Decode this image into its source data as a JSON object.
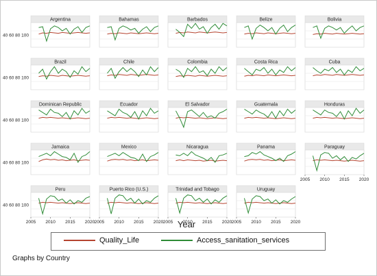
{
  "chart_data": {
    "type": "line",
    "xlabel": "Year",
    "ylabel": "",
    "xlim": [
      2005,
      2020
    ],
    "ylim": [
      40,
      100
    ],
    "x_ticks": [
      2005,
      2010,
      2015,
      2020
    ],
    "y_ticks": [
      40,
      60,
      80,
      100
    ],
    "years": [
      2007,
      2008,
      2009,
      2010,
      2011,
      2012,
      2013,
      2014,
      2015,
      2016,
      2017,
      2018,
      2019,
      2020
    ],
    "legend": {
      "position": "bottom"
    },
    "grid": true,
    "note": "Graphs by Country",
    "series_colors": {
      "Quality_Life": "#b5432f",
      "Access_sanitation_services": "#2e8b36"
    },
    "panels": [
      {
        "name": "Argentina",
        "series": [
          {
            "name": "Quality_Life",
            "values": [
              72,
              75,
              74,
              76,
              75,
              74,
              76,
              75,
              74,
              75,
              76,
              75,
              74,
              75
            ]
          },
          {
            "name": "Access_sanitation_services",
            "values": [
              88,
              90,
              55,
              85,
              92,
              88,
              80,
              86,
              72,
              84,
              90,
              76,
              88,
              92
            ]
          }
        ]
      },
      {
        "name": "Bahamas",
        "series": [
          {
            "name": "Quality_Life",
            "values": [
              72,
              74,
              73,
              75,
              74,
              73,
              75,
              74,
              73,
              74,
              75,
              74,
              73,
              74
            ]
          },
          {
            "name": "Access_sanitation_services",
            "values": [
              88,
              90,
              58,
              86,
              92,
              88,
              82,
              86,
              74,
              84,
              90,
              78,
              88,
              92
            ]
          }
        ]
      },
      {
        "name": "Barbados",
        "series": [
          {
            "name": "Quality_Life",
            "values": [
              74,
              76,
              75,
              77,
              76,
              75,
              77,
              76,
              75,
              76,
              77,
              76,
              75,
              76
            ]
          },
          {
            "name": "Access_sanitation_services",
            "values": [
              84,
              76,
              66,
              96,
              86,
              98,
              84,
              90,
              74,
              88,
              96,
              84,
              98,
              92
            ]
          }
        ]
      },
      {
        "name": "Belize",
        "series": [
          {
            "name": "Quality_Life",
            "values": [
              72,
              74,
              73,
              75,
              74,
              73,
              75,
              74,
              73,
              74,
              75,
              74,
              73,
              74
            ]
          },
          {
            "name": "Access_sanitation_services",
            "values": [
              88,
              92,
              60,
              86,
              94,
              88,
              80,
              88,
              72,
              86,
              94,
              78,
              88,
              94
            ]
          }
        ]
      },
      {
        "name": "Bolivia",
        "series": [
          {
            "name": "Quality_Life",
            "values": [
              71,
              73,
              72,
              74,
              73,
              72,
              74,
              73,
              72,
              73,
              74,
              73,
              72,
              73
            ]
          },
          {
            "name": "Access_sanitation_services",
            "values": [
              88,
              92,
              62,
              86,
              92,
              88,
              82,
              88,
              74,
              84,
              92,
              80,
              88,
              92
            ]
          }
        ]
      },
      {
        "name": "Brazil",
        "series": [
          {
            "name": "Quality_Life",
            "values": [
              72,
              74,
              73,
              75,
              74,
              73,
              75,
              74,
              73,
              74,
              75,
              74,
              73,
              74
            ]
          },
          {
            "name": "Access_sanitation_services",
            "values": [
              80,
              90,
              66,
              84,
              96,
              80,
              90,
              84,
              70,
              86,
              78,
              96,
              84,
              92
            ]
          }
        ]
      },
      {
        "name": "Chile",
        "series": [
          {
            "name": "Quality_Life",
            "values": [
              74,
              76,
              75,
              77,
              76,
              75,
              77,
              76,
              75,
              76,
              77,
              76,
              75,
              76
            ]
          },
          {
            "name": "Access_sanitation_services",
            "values": [
              80,
              92,
              68,
              84,
              94,
              84,
              92,
              84,
              72,
              88,
              76,
              96,
              84,
              94
            ]
          }
        ]
      },
      {
        "name": "Colombia",
        "series": [
          {
            "name": "Quality_Life",
            "values": [
              72,
              74,
              73,
              75,
              74,
              73,
              75,
              74,
              73,
              74,
              75,
              74,
              73,
              74
            ]
          },
          {
            "name": "Access_sanitation_services",
            "values": [
              90,
              84,
              70,
              92,
              84,
              96,
              82,
              86,
              74,
              90,
              80,
              96,
              86,
              94
            ]
          }
        ]
      },
      {
        "name": "Costa Rica",
        "series": [
          {
            "name": "Quality_Life",
            "values": [
              73,
              75,
              74,
              76,
              75,
              74,
              76,
              75,
              74,
              75,
              76,
              75,
              74,
              75
            ]
          },
          {
            "name": "Access_sanitation_services",
            "values": [
              92,
              84,
              76,
              90,
              86,
              94,
              80,
              90,
              76,
              88,
              82,
              96,
              86,
              94
            ]
          }
        ]
      },
      {
        "name": "Cuba",
        "series": [
          {
            "name": "Quality_Life",
            "values": [
              74,
              76,
              75,
              77,
              76,
              75,
              77,
              76,
              75,
              76,
              77,
              76,
              75,
              76
            ]
          },
          {
            "name": "Access_sanitation_services",
            "values": [
              94,
              86,
              80,
              90,
              86,
              94,
              82,
              90,
              76,
              88,
              82,
              96,
              86,
              92
            ]
          }
        ]
      },
      {
        "name": "Dominican Republic",
        "series": [
          {
            "name": "Quality_Life",
            "values": [
              74,
              76,
              75,
              76,
              75,
              74,
              75,
              74,
              73,
              74,
              75,
              74,
              73,
              74
            ]
          },
          {
            "name": "Access_sanitation_services",
            "values": [
              94,
              88,
              82,
              96,
              88,
              86,
              78,
              88,
              72,
              92,
              82,
              98,
              86,
              92
            ]
          }
        ]
      },
      {
        "name": "Ecuador",
        "series": [
          {
            "name": "Quality_Life",
            "values": [
              74,
              76,
              75,
              76,
              75,
              74,
              75,
              74,
              73,
              74,
              75,
              74,
              73,
              74
            ]
          },
          {
            "name": "Access_sanitation_services",
            "values": [
              92,
              86,
              80,
              96,
              88,
              84,
              76,
              90,
              72,
              92,
              80,
              98,
              86,
              92
            ]
          }
        ]
      },
      {
        "name": "El Salvador",
        "series": [
          {
            "name": "Quality_Life",
            "values": [
              74,
              76,
              75,
              76,
              75,
              74,
              75,
              74,
              73,
              74,
              75,
              74,
              73,
              74
            ]
          },
          {
            "name": "Access_sanitation_services",
            "values": [
              92,
              74,
              52,
              90,
              94,
              86,
              78,
              88,
              76,
              80,
              74,
              86,
              90,
              96
            ]
          }
        ]
      },
      {
        "name": "Guatemala",
        "series": [
          {
            "name": "Quality_Life",
            "values": [
              74,
              76,
              75,
              76,
              75,
              74,
              75,
              74,
              73,
              74,
              75,
              74,
              73,
              74
            ]
          },
          {
            "name": "Access_sanitation_services",
            "values": [
              96,
              90,
              84,
              94,
              88,
              84,
              76,
              90,
              74,
              92,
              80,
              96,
              86,
              94
            ]
          }
        ]
      },
      {
        "name": "Honduras",
        "series": [
          {
            "name": "Quality_Life",
            "values": [
              74,
              76,
              75,
              76,
              75,
              74,
              75,
              74,
              73,
              74,
              75,
              74,
              73,
              74
            ]
          },
          {
            "name": "Access_sanitation_services",
            "values": [
              94,
              88,
              82,
              94,
              88,
              86,
              78,
              90,
              72,
              92,
              80,
              98,
              86,
              94
            ]
          }
        ]
      },
      {
        "name": "Jamaica",
        "series": [
          {
            "name": "Quality_Life",
            "values": [
              72,
              76,
              78,
              76,
              77,
              75,
              76,
              74,
              75,
              76,
              74,
              75,
              76,
              75
            ]
          },
          {
            "name": "Access_sanitation_services",
            "values": [
              84,
              88,
              92,
              86,
              96,
              90,
              84,
              82,
              76,
              92,
              70,
              84,
              88,
              96
            ]
          }
        ]
      },
      {
        "name": "Mexico",
        "series": [
          {
            "name": "Quality_Life",
            "values": [
              73,
              76,
              77,
              76,
              77,
              75,
              76,
              74,
              75,
              76,
              74,
              75,
              76,
              75
            ]
          },
          {
            "name": "Access_sanitation_services",
            "values": [
              84,
              88,
              92,
              86,
              94,
              88,
              82,
              80,
              74,
              90,
              72,
              84,
              88,
              94
            ]
          }
        ]
      },
      {
        "name": "Nicaragua",
        "series": [
          {
            "name": "Quality_Life",
            "values": [
              74,
              76,
              74,
              76,
              75,
              74,
              75,
              73,
              74,
              75,
              73,
              74,
              75,
              74
            ]
          },
          {
            "name": "Access_sanitation_services",
            "values": [
              88,
              86,
              92,
              86,
              96,
              88,
              84,
              80,
              74,
              82,
              70,
              86,
              88,
              92
            ]
          }
        ]
      },
      {
        "name": "Panama",
        "series": [
          {
            "name": "Quality_Life",
            "values": [
              73,
              76,
              77,
              76,
              77,
              75,
              76,
              74,
              75,
              76,
              74,
              75,
              76,
              75
            ]
          },
          {
            "name": "Access_sanitation_services",
            "values": [
              84,
              86,
              94,
              90,
              96,
              88,
              84,
              80,
              74,
              80,
              72,
              86,
              90,
              96
            ]
          }
        ]
      },
      {
        "name": "Paraguay",
        "series": [
          {
            "name": "Quality_Life",
            "values": [
              74,
              76,
              75,
              76,
              75,
              74,
              75,
              74,
              73,
              74,
              75,
              74,
              73,
              74
            ]
          },
          {
            "name": "Access_sanitation_services",
            "values": [
              86,
              50,
              88,
              94,
              92,
              80,
              86,
              76,
              84,
              72,
              82,
              78,
              86,
              92
            ]
          }
        ]
      },
      {
        "name": "Peru",
        "series": [
          {
            "name": "Quality_Life",
            "values": [
              74,
              76,
              75,
              76,
              75,
              74,
              75,
              74,
              73,
              74,
              75,
              74,
              73,
              74
            ]
          },
          {
            "name": "Access_sanitation_services",
            "values": [
              86,
              48,
              84,
              92,
              90,
              80,
              84,
              74,
              82,
              72,
              80,
              76,
              86,
              90
            ]
          }
        ]
      },
      {
        "name": "Puerto Rico (U.S.)",
        "series": [
          {
            "name": "Quality_Life",
            "values": [
              74,
              76,
              75,
              76,
              75,
              74,
              75,
              74,
              73,
              74,
              75,
              74,
              73,
              74
            ]
          },
          {
            "name": "Access_sanitation_services",
            "values": [
              86,
              48,
              86,
              94,
              92,
              80,
              86,
              74,
              84,
              72,
              80,
              76,
              86,
              92
            ]
          }
        ]
      },
      {
        "name": "Trinidad and Tobago",
        "series": [
          {
            "name": "Quality_Life",
            "values": [
              74,
              76,
              75,
              76,
              75,
              74,
              75,
              74,
              73,
              74,
              75,
              74,
              73,
              74
            ]
          },
          {
            "name": "Access_sanitation_services",
            "values": [
              86,
              50,
              86,
              94,
              92,
              80,
              86,
              76,
              84,
              72,
              82,
              76,
              86,
              92
            ]
          }
        ]
      },
      {
        "name": "Uruguay",
        "series": [
          {
            "name": "Quality_Life",
            "values": [
              74,
              76,
              75,
              76,
              75,
              74,
              75,
              74,
              73,
              74,
              75,
              74,
              73,
              74
            ]
          },
          {
            "name": "Access_sanitation_services",
            "values": [
              86,
              50,
              84,
              92,
              90,
              80,
              84,
              74,
              82,
              72,
              80,
              76,
              84,
              90
            ]
          }
        ]
      }
    ]
  }
}
